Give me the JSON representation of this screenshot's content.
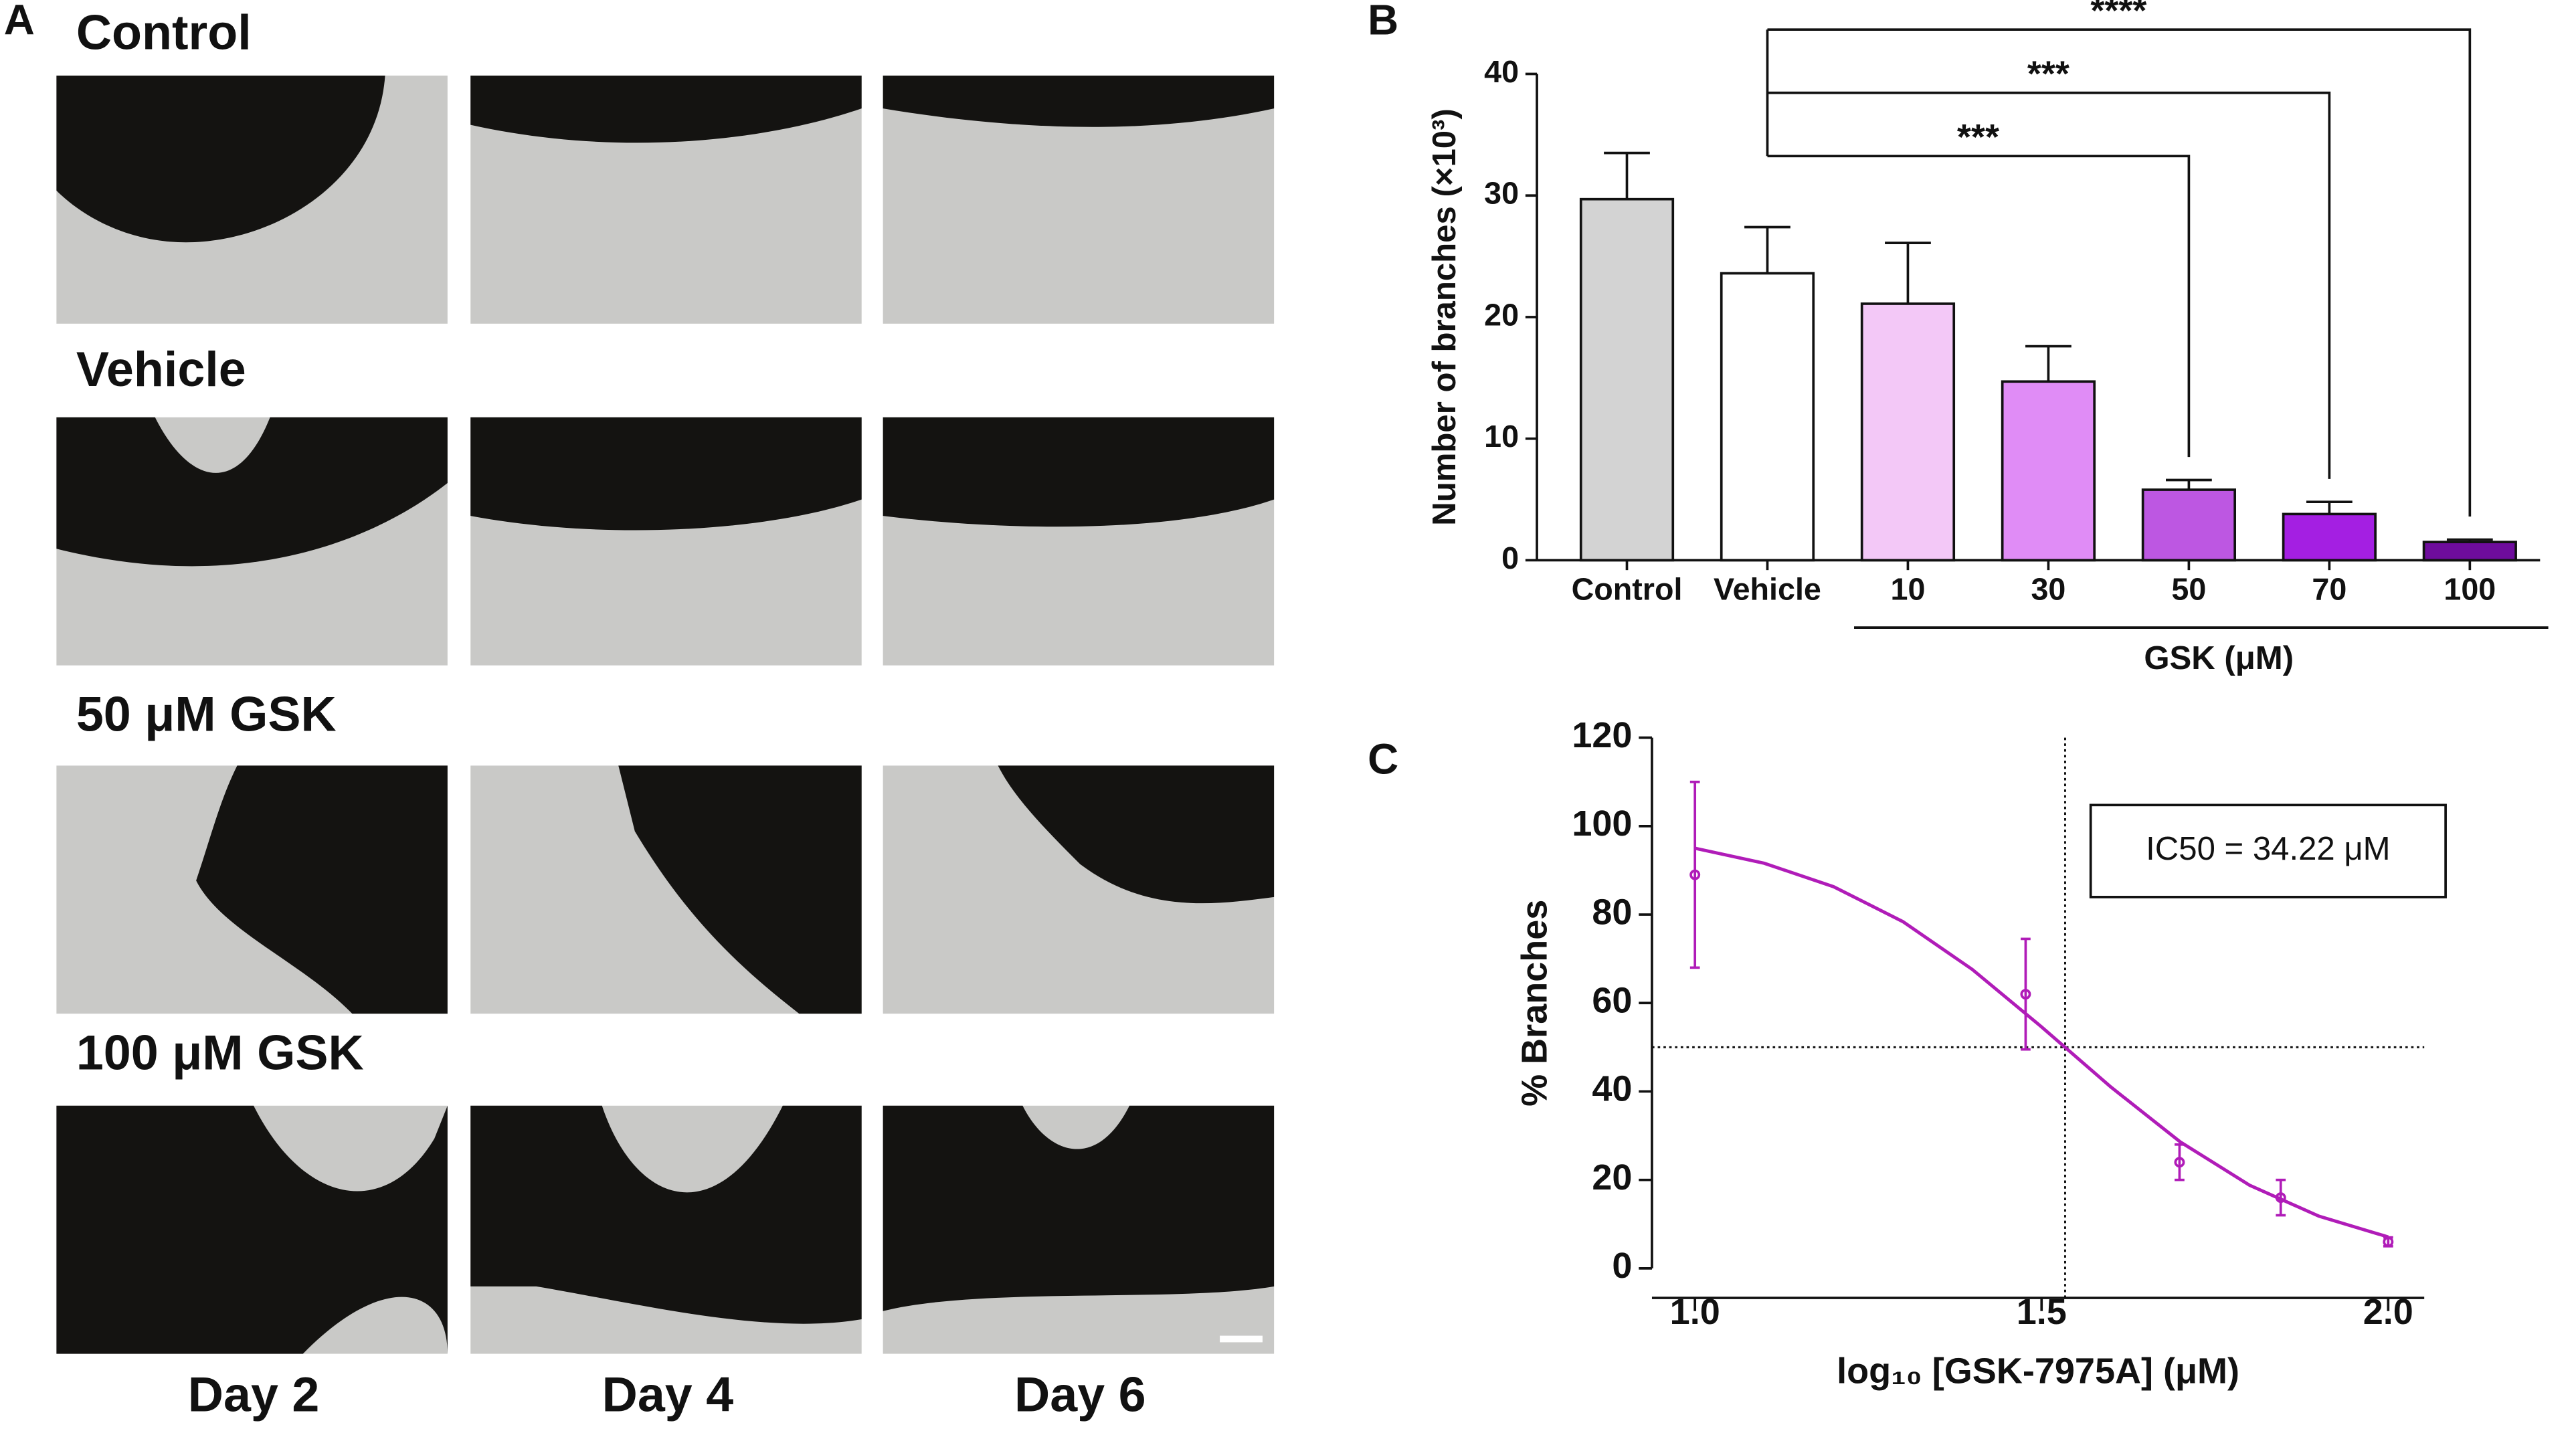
{
  "panel_a": {
    "label": "A",
    "rows": [
      "Control",
      "Vehicle",
      "50 μM GSK",
      "100 μM GSK"
    ],
    "columns": [
      "Day 2",
      "Day 4",
      "Day 6"
    ]
  },
  "chart_data": [
    {
      "type": "bar",
      "panel_label": "B",
      "ylabel": "Number of branches (×10³)",
      "group_label": "GSK (μM)",
      "categories": [
        "Control",
        "Vehicle",
        "10",
        "30",
        "50",
        "70",
        "100"
      ],
      "values": [
        29.7,
        23.6,
        21.1,
        14.7,
        5.8,
        3.8,
        1.5
      ],
      "errors": [
        3.8,
        3.8,
        5.0,
        2.9,
        0.8,
        1.0,
        0.2
      ],
      "colors": [
        "#d3d3d3",
        "#ffffff",
        "#f3c8f7",
        "#e08cf6",
        "#bd57e2",
        "#a41fe2",
        "#6e0c9c"
      ],
      "ylim": [
        0,
        40
      ],
      "yticks": [
        0,
        10,
        20,
        30,
        40
      ],
      "annotations": [
        {
          "text": "***",
          "from": "Vehicle",
          "to": "50"
        },
        {
          "text": "***",
          "from": "Vehicle",
          "to": "70"
        },
        {
          "text": "****",
          "from": "Vehicle",
          "to": "100"
        }
      ]
    },
    {
      "type": "line",
      "panel_label": "C",
      "xlabel": "log₁₀ [GSK-7975A] (μM)",
      "ylabel": "% Branches",
      "annotation": "IC50 = 34.22 μM",
      "series": [
        {
          "color": "#b01cb8",
          "x": [
            1.0,
            1.477,
            1.699,
            1.845,
            2.0
          ],
          "values": [
            89,
            62,
            24,
            16,
            6
          ],
          "errors": [
            21,
            12.5,
            4,
            4,
            1
          ]
        },
        {
          "color": "#b01cb8",
          "x": [
            1.0,
            1.1,
            1.2,
            1.3,
            1.4,
            1.5,
            1.6,
            1.7,
            1.8,
            1.9,
            2.0
          ],
          "values": [
            95.0,
            91.6,
            86.3,
            78.4,
            67.6,
            54.6,
            41.0,
            28.6,
            18.8,
            11.8,
            7.1
          ]
        }
      ],
      "reference_lines": {
        "x": 1.534,
        "y": 50
      },
      "xlim": [
        0.938,
        2.052
      ],
      "xticks": [
        {
          "value": 1,
          "label": "1.0"
        },
        {
          "value": 1.5,
          "label": "1.5"
        },
        {
          "value": 2,
          "label": "2.0"
        }
      ],
      "ylim": [
        0,
        120
      ],
      "yticks": [
        0,
        20,
        40,
        60,
        80,
        100,
        120
      ]
    }
  ]
}
